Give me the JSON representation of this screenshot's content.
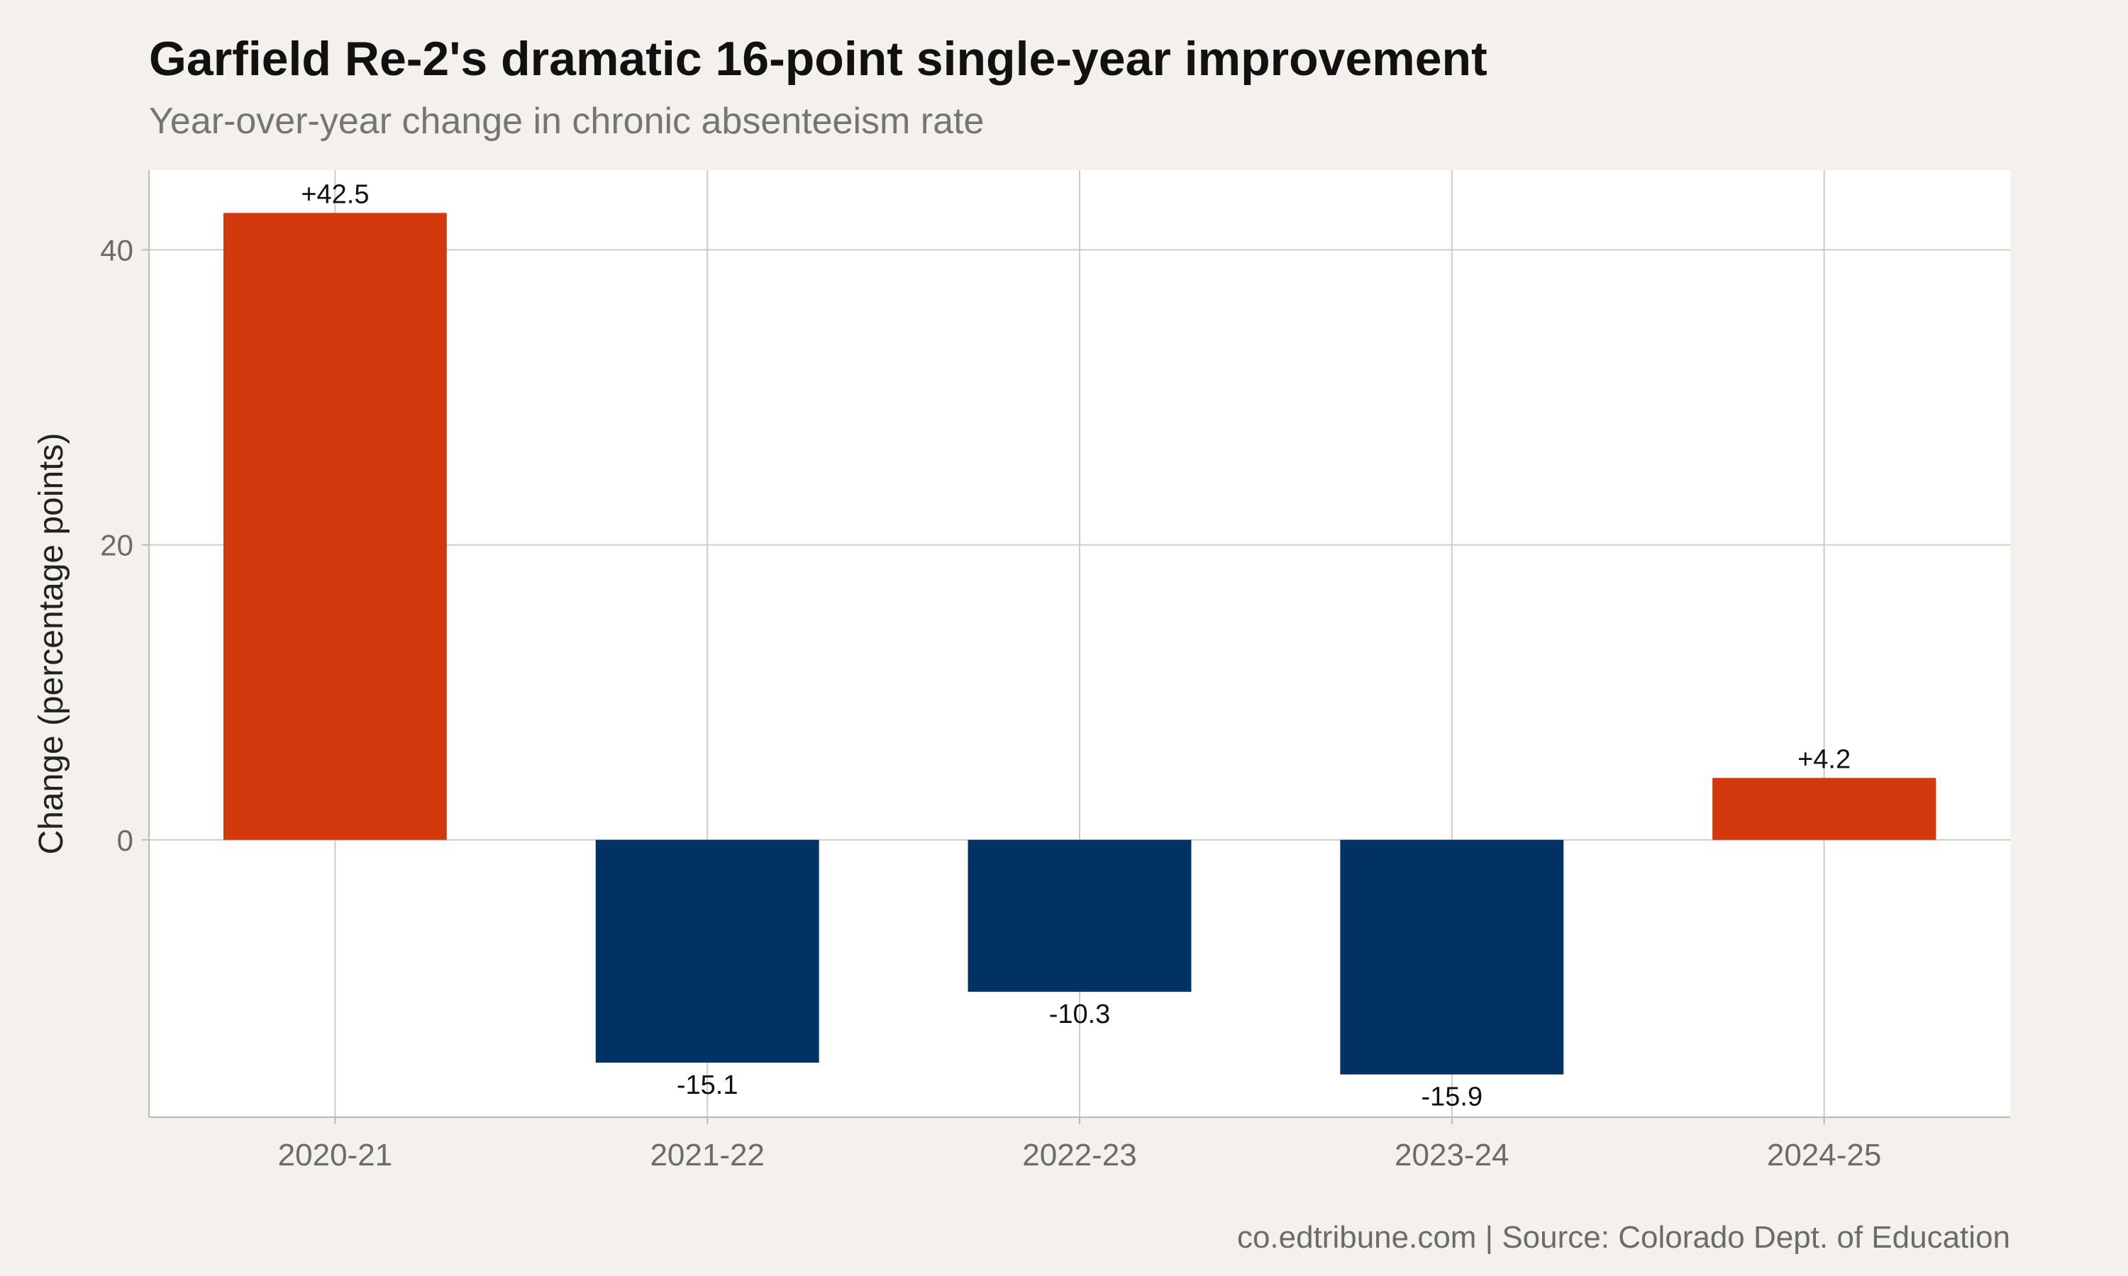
{
  "colors": {
    "background": "#f4f1ec",
    "panel": "#ffffff",
    "grid": "#cfccc6",
    "axis_line": "#bdbab3",
    "increase": "#d4390e",
    "decrease": "#003264",
    "title": "#111111",
    "subtitle": "#757575",
    "tick_text": "#6b6b6b",
    "label_text": "#111111"
  },
  "chart_data": {
    "type": "bar",
    "title": "Garfield Re-2's dramatic 16-point single-year improvement",
    "subtitle": "Year-over-year change in chronic absenteeism rate",
    "xlabel": "",
    "ylabel": "Change (percentage points)",
    "caption": "co.edtribune.com | Source: Colorado Dept. of Education",
    "categories": [
      "2020-21",
      "2021-22",
      "2022-23",
      "2023-24",
      "2024-25"
    ],
    "values": [
      42.5,
      -15.1,
      -10.3,
      -15.9,
      4.2
    ],
    "value_labels": [
      "+42.5",
      "-15.1",
      "-10.3",
      "-15.9",
      "+4.2"
    ],
    "yticks": [
      0,
      20,
      40
    ],
    "ylim": [
      -18.8,
      45.4
    ],
    "grid": true,
    "legend": "none"
  }
}
